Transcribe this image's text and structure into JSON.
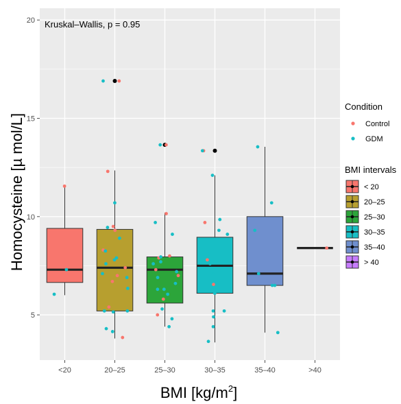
{
  "chart_data": {
    "type": "box",
    "annotation": "Kruskal–Wallis, p = 0.95",
    "xlabel": "BMI [kg/m",
    "xlabel_sup": "2",
    "xlabel_end": "]",
    "ylabel": "Homocysteine [µ mol/L]",
    "ylim": [
      2.7,
      20.6
    ],
    "yticks": [
      5,
      10,
      15,
      20
    ],
    "categories": [
      "<20",
      "20–25",
      "25–30",
      "30–35",
      "35–40",
      ">40"
    ],
    "grid": true,
    "legend_position": "right",
    "box_colors": [
      "#f8766d",
      "#b79f2f",
      "#2ca53a",
      "#17bec5",
      "#6f8fce",
      "#c77cff"
    ],
    "boxes": [
      {
        "category": "<20",
        "min": 6.0,
        "q1": 6.65,
        "median": 7.3,
        "q3": 9.4,
        "max": 11.5,
        "outliers": []
      },
      {
        "category": "20–25",
        "min": 3.8,
        "q1": 5.2,
        "median": 7.4,
        "q3": 9.35,
        "max": 12.35,
        "outliers": [
          16.9
        ]
      },
      {
        "category": "25–30",
        "min": 4.4,
        "q1": 5.6,
        "median": 7.3,
        "q3": 7.95,
        "max": 10.2,
        "outliers": [
          13.65
        ]
      },
      {
        "category": "30–35",
        "min": 3.6,
        "q1": 6.1,
        "median": 7.5,
        "q3": 8.95,
        "max": 12.1,
        "outliers": [
          13.35
        ]
      },
      {
        "category": "35–40",
        "min": 4.1,
        "q1": 6.5,
        "median": 7.1,
        "q3": 10.0,
        "max": 13.55,
        "outliers": []
      },
      {
        "category": ">40",
        "min": 8.4,
        "q1": 8.4,
        "median": 8.4,
        "q3": 8.4,
        "max": 8.4,
        "outliers": []
      }
    ],
    "points": [
      {
        "category": "<20",
        "group": "Control",
        "values": [
          11.55
        ]
      },
      {
        "category": "<20",
        "group": "GDM",
        "values": [
          7.3,
          6.05
        ]
      },
      {
        "category": "20–25",
        "group": "Control",
        "values": [
          12.3,
          9.5,
          9.3,
          8.3,
          7.4,
          7.0,
          6.7,
          5.4,
          3.85,
          16.9
        ]
      },
      {
        "category": "20–25",
        "group": "GDM",
        "values": [
          16.9,
          10.7,
          9.45,
          8.9,
          8.25,
          7.9,
          7.8,
          7.6,
          7.1,
          6.9,
          6.35,
          5.2,
          5.15,
          5.2,
          4.3,
          4.15
        ]
      },
      {
        "category": "25–30",
        "group": "Control",
        "values": [
          10.15,
          8.0,
          7.9,
          7.3,
          7.0,
          5.8,
          5.0,
          13.65
        ]
      },
      {
        "category": "25–30",
        "group": "GDM",
        "values": [
          13.65,
          9.7,
          9.1,
          7.95,
          7.7,
          7.6,
          7.2,
          6.9,
          6.6,
          6.3,
          6.3,
          6.05,
          5.3,
          4.8,
          4.4
        ]
      },
      {
        "category": "30–35",
        "group": "Control",
        "values": [
          9.7,
          7.8,
          6.55,
          13.35
        ]
      },
      {
        "category": "30–35",
        "group": "GDM",
        "values": [
          13.35,
          12.1,
          9.85,
          9.3,
          9.1,
          7.6,
          7.05,
          6.1,
          5.2,
          5.2,
          4.9,
          4.4,
          3.65
        ]
      },
      {
        "category": "35–40",
        "group": "GDM",
        "values": [
          13.55,
          10.7,
          9.3,
          7.1,
          6.5,
          6.5,
          4.1
        ]
      },
      {
        "category": ">40",
        "group": "Control",
        "values": [
          8.4
        ]
      }
    ],
    "legend": {
      "condition": {
        "title": "Condition",
        "items": [
          {
            "label": "Control",
            "color": "#f8766d"
          },
          {
            "label": "GDM",
            "color": "#17bec5"
          }
        ]
      },
      "bmi": {
        "title": "BMI intervals",
        "items": [
          {
            "label": "< 20",
            "color": "#f8766d"
          },
          {
            "label": "20–25",
            "color": "#b79f2f"
          },
          {
            "label": "25–30",
            "color": "#2ca53a"
          },
          {
            "label": "30–35",
            "color": "#17bec5"
          },
          {
            "label": "35–40",
            "color": "#6f8fce"
          },
          {
            "label": "> 40",
            "color": "#c77cff"
          }
        ]
      }
    },
    "colors": {
      "panel_bg": "#ebebeb",
      "grid": "#ffffff",
      "box_stroke": "#333333",
      "point_control": "#f8766d",
      "point_gdm": "#17bec5",
      "outlier": "#000000"
    }
  }
}
